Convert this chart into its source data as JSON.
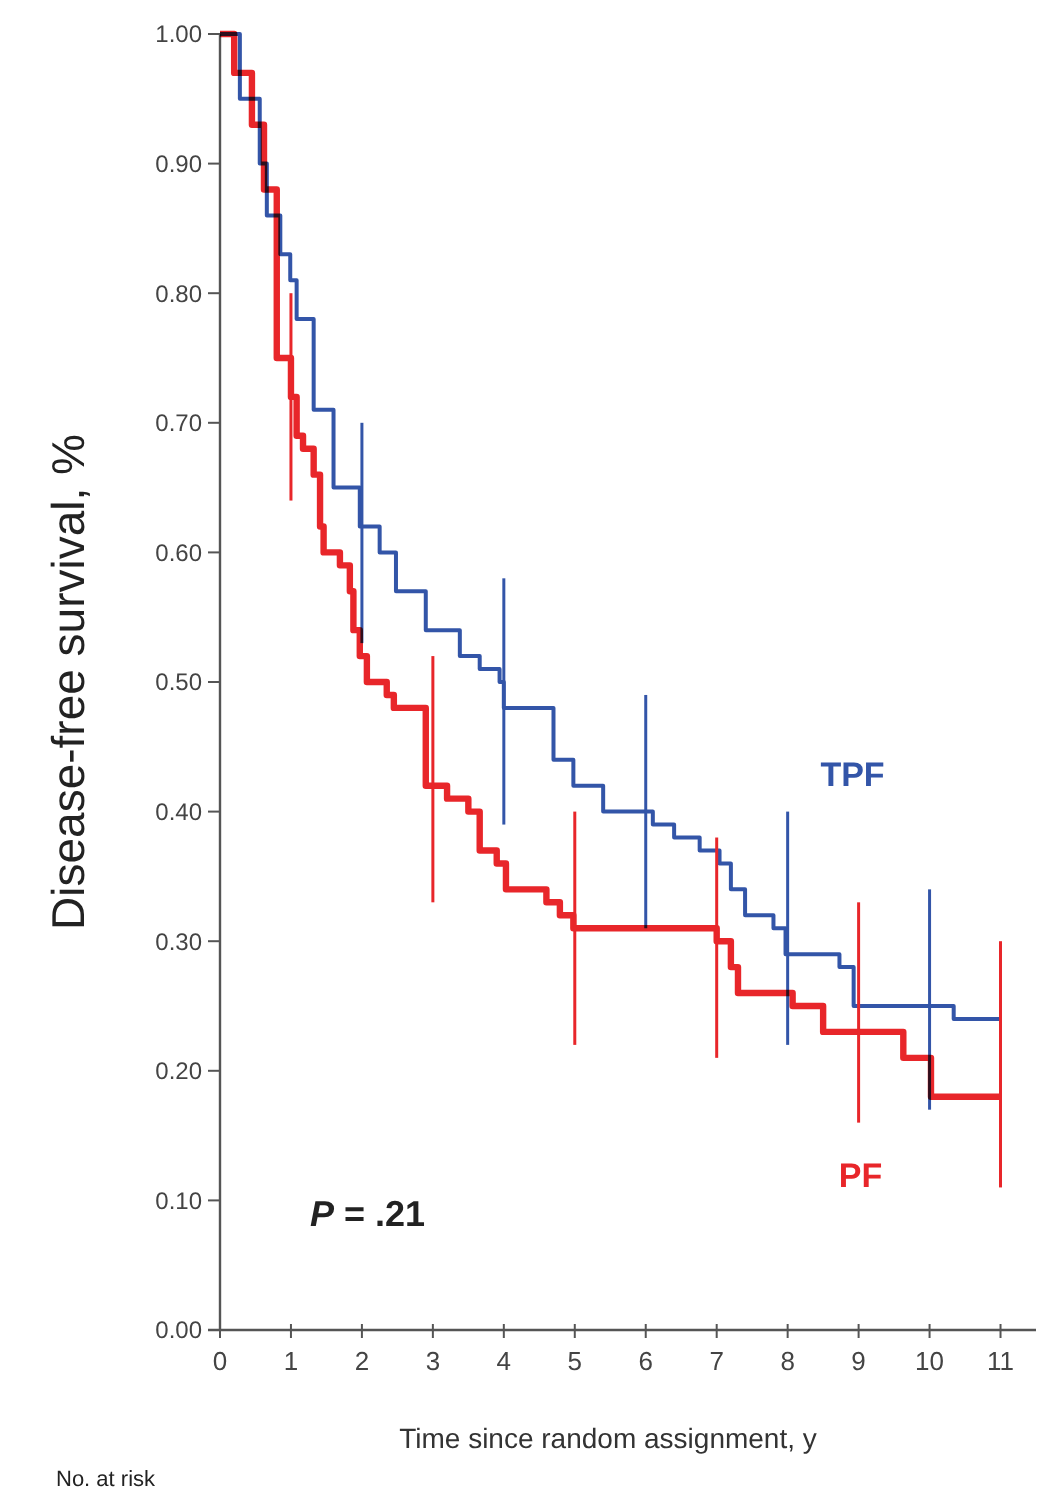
{
  "chart_data": {
    "type": "step",
    "xlabel": "Time since random assignment, y",
    "ylabel": "Disease-free survival, %",
    "xlim": [
      0,
      11.5
    ],
    "xticks": [
      0,
      1,
      2,
      3,
      4,
      5,
      6,
      7,
      8,
      9,
      10,
      11
    ],
    "ylim": [
      0,
      1
    ],
    "yticks": [
      {
        "value": 0,
        "label": "0.00"
      },
      {
        "value": 0.1,
        "label": "0.10"
      },
      {
        "value": 0.2,
        "label": "0.20"
      },
      {
        "value": 0.3,
        "label": "0.30"
      },
      {
        "value": 0.4,
        "label": "0.40"
      },
      {
        "value": 0.5,
        "label": "0.50"
      },
      {
        "value": 0.6,
        "label": "0.60"
      },
      {
        "value": 0.7,
        "label": "0.70"
      },
      {
        "value": 0.8,
        "label": "0.80"
      },
      {
        "value": 0.9,
        "label": "0.90"
      },
      {
        "value": 1,
        "label": "1.00"
      }
    ],
    "grid": false,
    "legend": false,
    "marker": "none",
    "line_style": "solid",
    "series": [
      {
        "name": "TPF",
        "color": "#3355a8",
        "x": [
          0,
          0.28,
          0.56,
          0.66,
          0.85,
          0.99,
          1.08,
          1.32,
          1.6,
          1.97,
          2,
          2.25,
          2.48,
          2.9,
          3.38,
          3.66,
          3.94,
          4,
          4.7,
          4.98,
          5.4,
          6,
          6.1,
          6.4,
          6.76,
          7.04,
          7.2,
          7.4,
          7.8,
          7.97,
          8,
          8.73,
          8.93,
          10,
          10.34,
          11
        ],
        "values": [
          1,
          0.95,
          0.9,
          0.86,
          0.83,
          0.81,
          0.78,
          0.71,
          0.65,
          0.62,
          0.62,
          0.6,
          0.57,
          0.54,
          0.52,
          0.51,
          0.5,
          0.48,
          0.44,
          0.42,
          0.4,
          0.4,
          0.39,
          0.38,
          0.37,
          0.36,
          0.34,
          0.32,
          0.31,
          0.29,
          0.29,
          0.28,
          0.25,
          0.25,
          0.24,
          0.24
        ],
        "errors": [
          null,
          null,
          null,
          null,
          null,
          null,
          null,
          null,
          null,
          null,
          [
            0.53,
            0.7
          ],
          null,
          null,
          null,
          null,
          null,
          null,
          [
            0.39,
            0.58
          ],
          null,
          null,
          null,
          [
            0.31,
            0.49
          ],
          null,
          null,
          null,
          null,
          null,
          null,
          null,
          null,
          [
            0.22,
            0.4
          ],
          null,
          null,
          [
            0.17,
            0.34
          ],
          null,
          null
        ]
      },
      {
        "name": "PF",
        "color": "#e8262a",
        "x": [
          0,
          0.2,
          0.45,
          0.62,
          0.8,
          1,
          1.08,
          1.17,
          1.32,
          1.41,
          1.46,
          1.69,
          1.83,
          1.88,
          1.97,
          2.07,
          2.35,
          2.45,
          2.9,
          3,
          3.2,
          3.5,
          3.66,
          3.9,
          4.03,
          4.4,
          4.6,
          4.79,
          4.98,
          5,
          7,
          7.2,
          7.3,
          8.07,
          8.5,
          9,
          9.63,
          10.02,
          11
        ],
        "values": [
          1,
          0.97,
          0.93,
          0.88,
          0.75,
          0.72,
          0.69,
          0.68,
          0.66,
          0.62,
          0.6,
          0.59,
          0.57,
          0.54,
          0.52,
          0.5,
          0.49,
          0.48,
          0.42,
          0.42,
          0.41,
          0.4,
          0.37,
          0.36,
          0.34,
          0.34,
          0.33,
          0.32,
          0.31,
          0.31,
          0.3,
          0.28,
          0.26,
          0.25,
          0.23,
          0.23,
          0.21,
          0.18,
          0.18
        ],
        "errors": [
          null,
          null,
          null,
          null,
          null,
          [
            0.64,
            0.8
          ],
          null,
          null,
          null,
          null,
          null,
          null,
          null,
          null,
          null,
          null,
          null,
          null,
          null,
          [
            0.33,
            0.52
          ],
          null,
          null,
          null,
          null,
          null,
          null,
          null,
          null,
          null,
          [
            0.22,
            0.4
          ],
          [
            0.21,
            0.38
          ],
          null,
          null,
          null,
          null,
          [
            0.16,
            0.33
          ],
          null,
          null,
          [
            0.11,
            0.3
          ]
        ]
      }
    ],
    "annotations": [
      "P = .21",
      "No. at risk"
    ]
  }
}
